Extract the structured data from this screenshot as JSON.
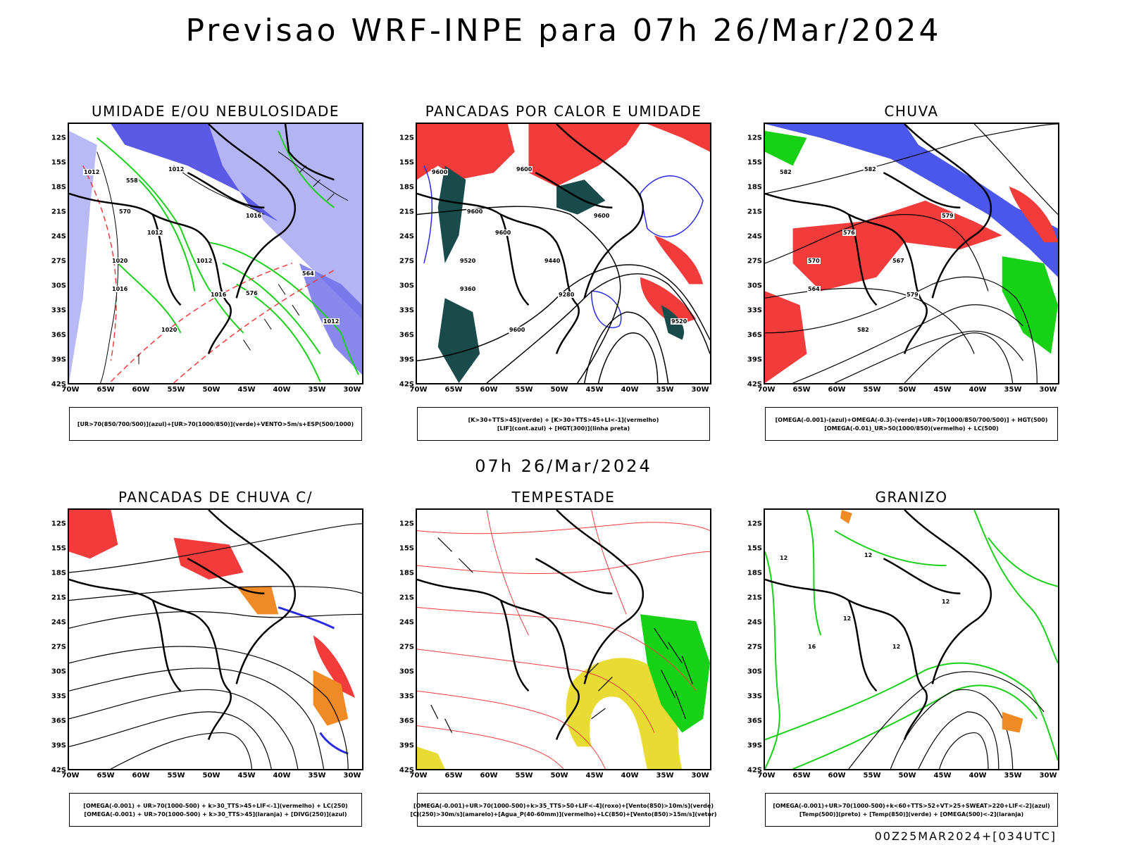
{
  "header": {
    "title": "Previsao WRF-INPE  para 07h 26/Mar/2024",
    "mid_date": "07h 26/Mar/2024",
    "run_info": "00Z25MAR2024+[034UTC]"
  },
  "axes": {
    "lat_labels": [
      "12S",
      "15S",
      "18S",
      "21S",
      "24S",
      "27S",
      "30S",
      "33S",
      "36S",
      "39S",
      "42S"
    ],
    "lon_labels": [
      "70W",
      "65W",
      "60W",
      "55W",
      "50W",
      "45W",
      "40W",
      "35W",
      "30W"
    ]
  },
  "panels": [
    {
      "title": "UMIDADE E/OU NEBULOSIDADE",
      "legend": [
        "[UR>70(850/700/500)](azul)+[UR>70(1000/850)](verde)+VENTO>5m/s+ESP(500/1000)"
      ],
      "contour_labels": [
        "1012",
        "1012",
        "1016",
        "1012",
        "1020",
        "1012",
        "1016",
        "1016",
        "1020",
        "1012",
        "570",
        "576",
        "558",
        "564"
      ]
    },
    {
      "title": "PANCADAS POR CALOR E UMIDADE",
      "legend": [
        "[K>30+TTS>45](verde) + [K>30+TTS>45+LI<-1](vermelho)",
        "[LIF](cont.azul) + [HGT(300)](linha preta)"
      ],
      "contour_labels": [
        "9600",
        "9600",
        "9600",
        "9600",
        "9520",
        "9440",
        "9360",
        "9280",
        "9600",
        "9520",
        "9600"
      ]
    },
    {
      "title": "CHUVA",
      "legend": [
        "[OMEGA(-0.001)-(azul)+OMEGA(-0.3)-(verde)+UR>70(1000/850/700/500)] + HGT(500)",
        "[OMEGA(-0.01)_UR>50(1000/850)(vermelho) + LC(500)"
      ],
      "contour_labels": [
        "582",
        "582",
        "579",
        "576",
        "570",
        "567",
        "564",
        "579",
        "582"
      ]
    },
    {
      "title": "PANCADAS DE CHUVA C/ TROVOADAS",
      "legend": [
        "[OMEGA(-0.001) + UR>70(1000-500) + k>30_TTS>45+LIF<-1](vermelho) + LC(250)",
        "[OMEGA(-0.001) + UR>70(1000-500) + k>30_TTS>45](laranja) + [DIVG(250)](azul)"
      ],
      "contour_labels": []
    },
    {
      "title": "TEMPESTADE",
      "legend": [
        "[OMEGA(-0.001)+UR>70(1000-500)+k>35_TTS>50+LIF<-4](roxo)+[Vento(850)>10m/s](verde)",
        "[CJ(250)>30m/s](amarelo)+[Agua_P(40-60mm)](vermelho)+LC(850)+[Vento(850)>15m/s](vetor)"
      ],
      "contour_labels": []
    },
    {
      "title": "GRANIZO",
      "legend": [
        "[OMEGA(-0.001)+UR>70(1000-500)+k<60+TTS>52+VT>25+SWEAT>220+LIF<-2](azul)",
        "[Temp(500)](preto) + [Temp(850)](verde) + [OMEGA(500)<-2](laranja)"
      ],
      "contour_labels": [
        "12",
        "12",
        "12",
        "12",
        "16",
        "12"
      ]
    }
  ],
  "colors": {
    "blue_humidity": "#5a5ae6",
    "light_blue": "#a7a7f2",
    "green": "#17d117",
    "red": "#f23c3c",
    "dark_teal": "#1a4b4b",
    "orange": "#f08a24",
    "yellow": "#e8dc34",
    "contour": "#000000"
  }
}
